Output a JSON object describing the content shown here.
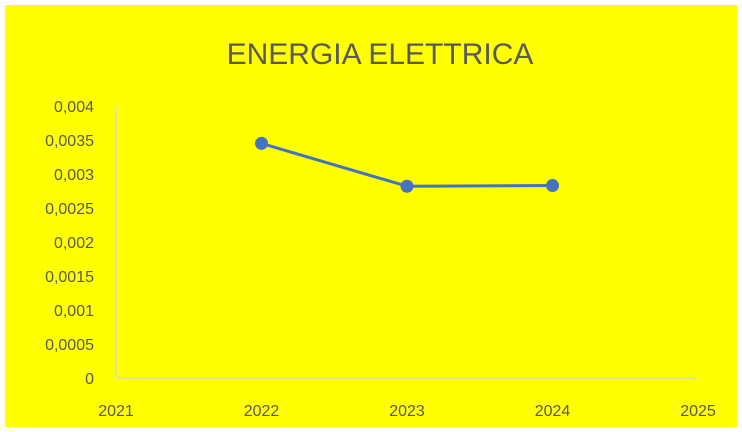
{
  "chart_data": {
    "type": "line",
    "title": "ENERGIA ELETTRICA",
    "xlabel": "",
    "ylabel": "",
    "x": [
      2022,
      2023,
      2024
    ],
    "series": [
      {
        "values": [
          0.00345,
          0.00282,
          0.00283
        ]
      }
    ],
    "xlim": [
      2021,
      2025
    ],
    "ylim": [
      0,
      0.004
    ],
    "x_ticks": [
      2021,
      2022,
      2023,
      2024,
      2025
    ],
    "x_tick_labels": [
      "2021",
      "2022",
      "2023",
      "2024",
      "2025"
    ],
    "y_ticks": [
      0,
      0.0005,
      0.001,
      0.0015,
      0.002,
      0.0025,
      0.003,
      0.0035,
      0.004
    ],
    "y_tick_labels": [
      "0",
      "0,0005",
      "0,001",
      "0,0015",
      "0,002",
      "0,0025",
      "0,003",
      "0,0035",
      "0,004"
    ],
    "grid": false,
    "legend": "none",
    "colors": {
      "background": "#ffff00",
      "series": "#4472c4",
      "axis": "#d9d9d9",
      "text": "#595959"
    }
  }
}
